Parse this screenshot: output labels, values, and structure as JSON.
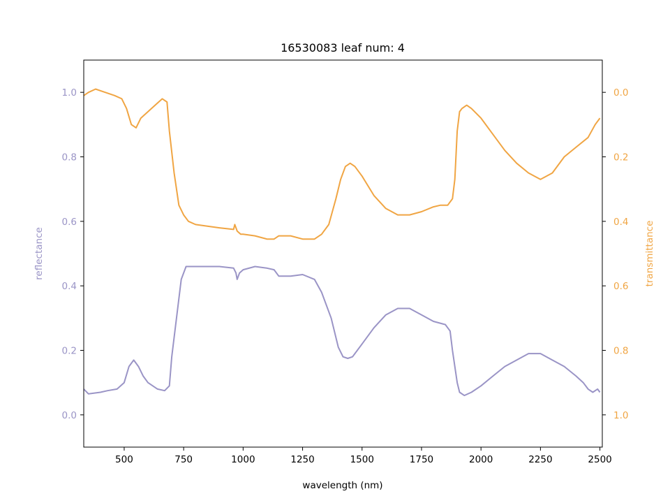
{
  "chart_data": {
    "type": "line",
    "title": "16530083 leaf num: 4",
    "xlabel": "wavelength (nm)",
    "ylabel_left": "reflectance",
    "ylabel_right": "transmittance",
    "xlim": [
      330,
      2510
    ],
    "ylim_left": [
      -0.1,
      1.1
    ],
    "ylim_right": [
      1.1,
      -0.1
    ],
    "right_axis_inverted": true,
    "x_ticks": [
      500,
      750,
      1000,
      1250,
      1500,
      1750,
      2000,
      2250,
      2500
    ],
    "x_tick_labels": [
      "500",
      "750",
      "1000",
      "1250",
      "1500",
      "1750",
      "2000",
      "2250",
      "2500"
    ],
    "y_left_ticks": [
      0.0,
      0.2,
      0.4,
      0.6,
      0.8,
      1.0
    ],
    "y_left_tick_labels": [
      "0.0",
      "0.2",
      "0.4",
      "0.6",
      "0.8",
      "1.0"
    ],
    "y_right_ticks": [
      0.0,
      0.2,
      0.4,
      0.6,
      0.8,
      1.0
    ],
    "y_right_tick_labels": [
      "0.0",
      "0.2",
      "0.4",
      "0.6",
      "0.8",
      "1.0"
    ],
    "grid": false,
    "colors": {
      "reflectance": "#9a94c6",
      "transmittance": "#f0a543"
    },
    "series": [
      {
        "axis": "left",
        "color": "#9a94c6",
        "x": [
          330,
          350,
          400,
          430,
          470,
          500,
          520,
          540,
          560,
          580,
          600,
          640,
          670,
          690,
          700,
          720,
          740,
          760,
          800,
          900,
          960,
          970,
          975,
          985,
          1000,
          1050,
          1100,
          1130,
          1150,
          1200,
          1250,
          1300,
          1330,
          1370,
          1400,
          1420,
          1440,
          1460,
          1500,
          1550,
          1600,
          1650,
          1700,
          1750,
          1800,
          1850,
          1870,
          1880,
          1900,
          1910,
          1930,
          1960,
          2000,
          2050,
          2100,
          2150,
          2200,
          2250,
          2300,
          2350,
          2400,
          2430,
          2450,
          2470,
          2490,
          2500
        ],
        "y": [
          0.08,
          0.065,
          0.07,
          0.075,
          0.08,
          0.1,
          0.15,
          0.17,
          0.15,
          0.12,
          0.1,
          0.08,
          0.075,
          0.09,
          0.18,
          0.3,
          0.42,
          0.46,
          0.46,
          0.46,
          0.455,
          0.44,
          0.42,
          0.44,
          0.45,
          0.46,
          0.455,
          0.45,
          0.43,
          0.43,
          0.435,
          0.42,
          0.38,
          0.3,
          0.21,
          0.18,
          0.175,
          0.18,
          0.22,
          0.27,
          0.31,
          0.33,
          0.33,
          0.31,
          0.29,
          0.28,
          0.26,
          0.2,
          0.1,
          0.07,
          0.06,
          0.07,
          0.09,
          0.12,
          0.15,
          0.17,
          0.19,
          0.19,
          0.17,
          0.15,
          0.12,
          0.1,
          0.08,
          0.07,
          0.08,
          0.07
        ]
      },
      {
        "axis": "right",
        "color": "#f0a543",
        "x": [
          330,
          350,
          380,
          420,
          460,
          490,
          510,
          530,
          550,
          570,
          600,
          630,
          660,
          680,
          690,
          710,
          730,
          750,
          770,
          800,
          850,
          900,
          960,
          965,
          975,
          990,
          1000,
          1050,
          1100,
          1130,
          1150,
          1200,
          1250,
          1300,
          1330,
          1360,
          1390,
          1410,
          1430,
          1450,
          1470,
          1500,
          1550,
          1600,
          1650,
          1700,
          1750,
          1800,
          1830,
          1860,
          1880,
          1890,
          1900,
          1910,
          1920,
          1940,
          1960,
          2000,
          2050,
          2100,
          2150,
          2200,
          2250,
          2300,
          2350,
          2400,
          2450,
          2480,
          2500
        ],
        "y": [
          0.01,
          0.0,
          -0.01,
          0.0,
          0.01,
          0.02,
          0.05,
          0.1,
          0.11,
          0.08,
          0.06,
          0.04,
          0.02,
          0.03,
          0.12,
          0.25,
          0.35,
          0.38,
          0.4,
          0.41,
          0.415,
          0.42,
          0.425,
          0.41,
          0.43,
          0.44,
          0.44,
          0.445,
          0.455,
          0.455,
          0.445,
          0.445,
          0.455,
          0.455,
          0.44,
          0.41,
          0.33,
          0.27,
          0.23,
          0.22,
          0.23,
          0.26,
          0.32,
          0.36,
          0.38,
          0.38,
          0.37,
          0.355,
          0.35,
          0.35,
          0.33,
          0.27,
          0.12,
          0.06,
          0.05,
          0.04,
          0.05,
          0.08,
          0.13,
          0.18,
          0.22,
          0.25,
          0.27,
          0.25,
          0.2,
          0.17,
          0.14,
          0.1,
          0.08
        ]
      }
    ]
  }
}
